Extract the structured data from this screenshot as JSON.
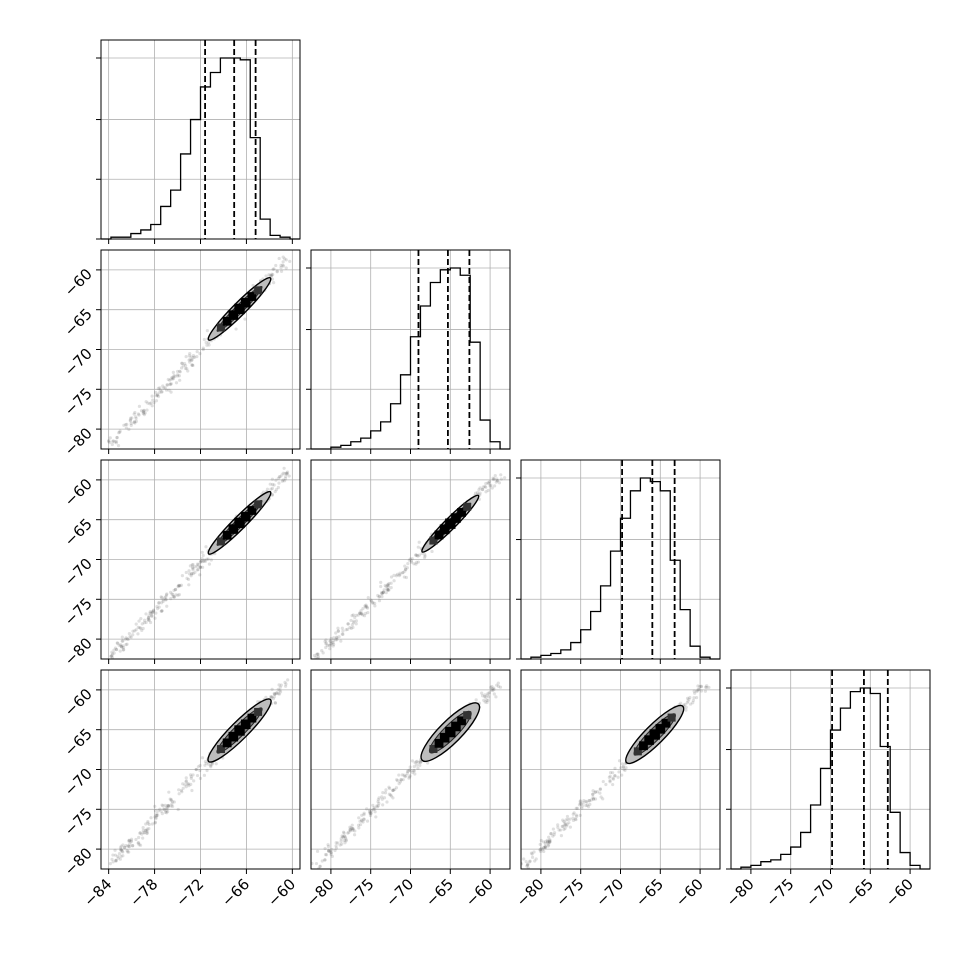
{
  "chart_data": {
    "type": "corner",
    "ndim": 4,
    "grid": true,
    "panel_ranges": [
      [
        -85,
        -59
      ],
      [
        -82.5,
        -57.5
      ],
      [
        -82.5,
        -57.5
      ],
      [
        -82.5,
        -57.5
      ]
    ],
    "tick_labels": [
      {
        "values": [
          -84,
          -78,
          -72,
          -66,
          -60
        ],
        "labels": [
          "−84",
          "−78",
          "−72",
          "−66",
          "−60"
        ]
      },
      {
        "values": [
          -80,
          -75,
          -70,
          -65,
          -60
        ],
        "labels": [
          "−80",
          "−75",
          "−70",
          "−65",
          "−60"
        ]
      },
      {
        "values": [
          -80,
          -75,
          -70,
          -65,
          -60
        ],
        "labels": [
          "−80",
          "−75",
          "−70",
          "−65",
          "−60"
        ]
      },
      {
        "values": [
          -80,
          -75,
          -70,
          -65,
          -60
        ],
        "labels": [
          "−80",
          "−75",
          "−70",
          "−65",
          "−60"
        ]
      }
    ],
    "histograms": [
      {
        "bin_edges": [
          -85,
          -83.7,
          -82.4,
          -81.1,
          -79.8,
          -78.5,
          -77.2,
          -75.9,
          -74.6,
          -73.3,
          -72.0,
          -70.7,
          -69.4,
          -68.1,
          -66.8,
          -65.5,
          -64.2,
          -62.9,
          -61.6,
          -60.3,
          -59.0
        ],
        "counts": [
          0,
          1,
          1,
          3,
          5,
          8,
          18,
          27,
          47,
          66,
          84,
          92,
          100,
          100,
          99,
          56,
          11,
          2,
          1,
          0
        ],
        "quantiles": [
          -71.4,
          -67.6,
          -64.8
        ]
      },
      {
        "bin_edges": [
          -82.5,
          -81.25,
          -80.0,
          -78.75,
          -77.5,
          -76.25,
          -75.0,
          -73.75,
          -72.5,
          -71.25,
          -70.0,
          -68.75,
          -67.5,
          -66.25,
          -65.0,
          -63.75,
          -62.5,
          -61.25,
          -60.0,
          -58.75,
          -57.5
        ],
        "counts": [
          0,
          0,
          1,
          2,
          4,
          6,
          10,
          15,
          25,
          41,
          62,
          79,
          92,
          99,
          100,
          96,
          59,
          16,
          4,
          0
        ],
        "quantiles": [
          -69.0,
          -65.3,
          -62.6
        ]
      },
      {
        "bin_edges": [
          -82.5,
          -81.25,
          -80.0,
          -78.75,
          -77.5,
          -76.25,
          -75.0,
          -73.75,
          -72.5,
          -71.25,
          -70.0,
          -68.75,
          -67.5,
          -66.25,
          -65.0,
          -63.75,
          -62.5,
          -61.25,
          -60.0,
          -58.75,
          -57.5
        ],
        "counts": [
          0,
          1,
          2,
          3,
          5,
          9,
          16,
          26,
          40,
          59,
          77,
          92,
          99,
          97,
          92,
          54,
          27,
          7,
          1,
          0
        ],
        "quantiles": [
          -69.8,
          -66.0,
          -63.2
        ]
      },
      {
        "bin_edges": [
          -82.5,
          -81.25,
          -80.0,
          -78.75,
          -77.5,
          -76.25,
          -75.0,
          -73.75,
          -72.5,
          -71.25,
          -70.0,
          -68.75,
          -67.5,
          -66.25,
          -65.0,
          -63.75,
          -62.5,
          -61.25,
          -60.0,
          -58.75,
          -57.5
        ],
        "counts": [
          0,
          1,
          2,
          4,
          5,
          8,
          12,
          20,
          35,
          55,
          76,
          88,
          97,
          99,
          96,
          67,
          31,
          9,
          2,
          0
        ],
        "quantiles": [
          -69.8,
          -65.8,
          -62.8
        ]
      }
    ],
    "scatter_panels": [
      {
        "row": 1,
        "col": 0,
        "center": [
          -66.9,
          -64.9
        ],
        "half_length": 5.5,
        "half_width": 0.8
      },
      {
        "row": 2,
        "col": 0,
        "center": [
          -66.9,
          -65.4
        ],
        "half_length": 5.5,
        "half_width": 0.8
      },
      {
        "row": 2,
        "col": 1,
        "center": [
          -65.0,
          -65.5
        ],
        "half_length": 5.0,
        "half_width": 0.7
      },
      {
        "row": 3,
        "col": 0,
        "center": [
          -66.9,
          -65.1
        ],
        "half_length": 5.5,
        "half_width": 1.1
      },
      {
        "row": 3,
        "col": 1,
        "center": [
          -65.0,
          -65.3
        ],
        "half_length": 5.0,
        "half_width": 1.4
      },
      {
        "row": 3,
        "col": 2,
        "center": [
          -65.7,
          -65.6
        ],
        "half_length": 5.0,
        "half_width": 1.2
      }
    ]
  }
}
